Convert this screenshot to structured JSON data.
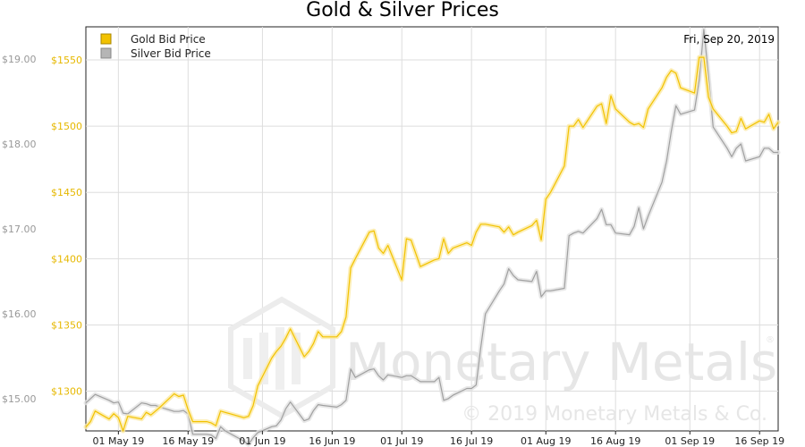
{
  "chart_data": {
    "type": "line",
    "title": "Gold & Silver Prices",
    "date_label": "Fri, Sep 20, 2019",
    "legend": {
      "position": "top-left"
    },
    "grid": true,
    "x_range": [
      "2019-04-24",
      "2019-09-20"
    ],
    "x_ticks": [
      "01 May 19",
      "16 May 19",
      "01 Jun 19",
      "16 Jun 19",
      "01 Jul 19",
      "16 Jul 19",
      "01 Aug 19",
      "16 Aug 19",
      "01 Sep 19",
      "16 Sep 19"
    ],
    "x_tick_dates": [
      "2019-05-01",
      "2019-05-16",
      "2019-06-01",
      "2019-06-16",
      "2019-07-01",
      "2019-07-16",
      "2019-08-01",
      "2019-08-16",
      "2019-09-01",
      "2019-09-16"
    ],
    "y_left": {
      "ticks": [
        "$1300",
        "$1350",
        "$1400",
        "$1450",
        "$1500",
        "$1550"
      ],
      "tick_values": [
        1300,
        1350,
        1400,
        1450,
        1500,
        1550
      ],
      "range": [
        1270,
        1575
      ]
    },
    "y_right": {
      "ticks": [
        "$15.00",
        "$16.00",
        "$17.00",
        "$18.00",
        "$19.00"
      ],
      "tick_values": [
        15,
        16,
        17,
        18,
        19
      ],
      "range": [
        14.62,
        19.38
      ]
    },
    "series": [
      {
        "name": "Gold Bid Price",
        "axis": "left",
        "color": "#f2c200",
        "points": [
          [
            "2019-04-24",
            1273
          ],
          [
            "2019-04-25",
            1277
          ],
          [
            "2019-04-26",
            1285
          ],
          [
            "2019-04-29",
            1279
          ],
          [
            "2019-04-30",
            1283
          ],
          [
            "2019-05-01",
            1280
          ],
          [
            "2019-05-02",
            1270
          ],
          [
            "2019-05-03",
            1281
          ],
          [
            "2019-05-06",
            1279
          ],
          [
            "2019-05-07",
            1284
          ],
          [
            "2019-05-08",
            1282
          ],
          [
            "2019-05-09",
            1285
          ],
          [
            "2019-05-10",
            1288
          ],
          [
            "2019-05-13",
            1298
          ],
          [
            "2019-05-14",
            1296
          ],
          [
            "2019-05-15",
            1297
          ],
          [
            "2019-05-16",
            1286
          ],
          [
            "2019-05-17",
            1277
          ],
          [
            "2019-05-20",
            1277
          ],
          [
            "2019-05-21",
            1276
          ],
          [
            "2019-05-22",
            1274
          ],
          [
            "2019-05-23",
            1285
          ],
          [
            "2019-05-24",
            1284
          ],
          [
            "2019-05-28",
            1280
          ],
          [
            "2019-05-29",
            1281
          ],
          [
            "2019-05-30",
            1289
          ],
          [
            "2019-05-31",
            1304
          ],
          [
            "2019-06-03",
            1325
          ],
          [
            "2019-06-04",
            1330
          ],
          [
            "2019-06-05",
            1334
          ],
          [
            "2019-06-06",
            1340
          ],
          [
            "2019-06-07",
            1347
          ],
          [
            "2019-06-10",
            1326
          ],
          [
            "2019-06-11",
            1330
          ],
          [
            "2019-06-12",
            1336
          ],
          [
            "2019-06-13",
            1345
          ],
          [
            "2019-06-14",
            1341
          ],
          [
            "2019-06-17",
            1341
          ],
          [
            "2019-06-18",
            1345
          ],
          [
            "2019-06-19",
            1356
          ],
          [
            "2019-06-20",
            1393
          ],
          [
            "2019-06-21",
            1400
          ],
          [
            "2019-06-24",
            1420
          ],
          [
            "2019-06-25",
            1421
          ],
          [
            "2019-06-26",
            1408
          ],
          [
            "2019-06-27",
            1404
          ],
          [
            "2019-06-28",
            1410
          ],
          [
            "2019-07-01",
            1384
          ],
          [
            "2019-07-02",
            1415
          ],
          [
            "2019-07-03",
            1414
          ],
          [
            "2019-07-05",
            1394
          ],
          [
            "2019-07-08",
            1399
          ],
          [
            "2019-07-09",
            1400
          ],
          [
            "2019-07-10",
            1415
          ],
          [
            "2019-07-11",
            1404
          ],
          [
            "2019-07-12",
            1408
          ],
          [
            "2019-07-15",
            1412
          ],
          [
            "2019-07-16",
            1410
          ],
          [
            "2019-07-17",
            1420
          ],
          [
            "2019-07-18",
            1426
          ],
          [
            "2019-07-19",
            1426
          ],
          [
            "2019-07-22",
            1424
          ],
          [
            "2019-07-23",
            1420
          ],
          [
            "2019-07-24",
            1424
          ],
          [
            "2019-07-25",
            1418
          ],
          [
            "2019-07-26",
            1420
          ],
          [
            "2019-07-29",
            1425
          ],
          [
            "2019-07-30",
            1429
          ],
          [
            "2019-07-31",
            1414
          ],
          [
            "2019-08-01",
            1445
          ],
          [
            "2019-08-02",
            1450
          ],
          [
            "2019-08-05",
            1470
          ],
          [
            "2019-08-06",
            1500
          ],
          [
            "2019-08-07",
            1500
          ],
          [
            "2019-08-08",
            1505
          ],
          [
            "2019-08-09",
            1499
          ],
          [
            "2019-08-12",
            1515
          ],
          [
            "2019-08-13",
            1517
          ],
          [
            "2019-08-14",
            1502
          ],
          [
            "2019-08-15",
            1523
          ],
          [
            "2019-08-16",
            1513
          ],
          [
            "2019-08-19",
            1503
          ],
          [
            "2019-08-20",
            1501
          ],
          [
            "2019-08-21",
            1502
          ],
          [
            "2019-08-22",
            1499
          ],
          [
            "2019-08-23",
            1513
          ],
          [
            "2019-08-26",
            1529
          ],
          [
            "2019-08-27",
            1537
          ],
          [
            "2019-08-28",
            1542
          ],
          [
            "2019-08-29",
            1540
          ],
          [
            "2019-08-30",
            1529
          ],
          [
            "2019-09-02",
            1525
          ],
          [
            "2019-09-03",
            1552
          ],
          [
            "2019-09-04",
            1552
          ],
          [
            "2019-09-05",
            1522
          ],
          [
            "2019-09-06",
            1513
          ],
          [
            "2019-09-09",
            1500
          ],
          [
            "2019-09-10",
            1495
          ],
          [
            "2019-09-11",
            1496
          ],
          [
            "2019-09-12",
            1506
          ],
          [
            "2019-09-13",
            1498
          ],
          [
            "2019-09-16",
            1504
          ],
          [
            "2019-09-17",
            1503
          ],
          [
            "2019-09-18",
            1509
          ],
          [
            "2019-09-19",
            1498
          ],
          [
            "2019-09-20",
            1503
          ]
        ]
      },
      {
        "name": "Silver Bid Price",
        "axis": "right",
        "color": "#a0a0a0",
        "points": [
          [
            "2019-04-24",
            14.95
          ],
          [
            "2019-04-25",
            15.0
          ],
          [
            "2019-04-26",
            15.05
          ],
          [
            "2019-04-29",
            14.98
          ],
          [
            "2019-04-30",
            14.95
          ],
          [
            "2019-05-01",
            14.96
          ],
          [
            "2019-05-02",
            14.83
          ],
          [
            "2019-05-03",
            14.82
          ],
          [
            "2019-05-06",
            14.95
          ],
          [
            "2019-05-07",
            14.94
          ],
          [
            "2019-05-08",
            14.92
          ],
          [
            "2019-05-09",
            14.92
          ],
          [
            "2019-05-10",
            14.9
          ],
          [
            "2019-05-13",
            14.85
          ],
          [
            "2019-05-14",
            14.85
          ],
          [
            "2019-05-15",
            14.86
          ],
          [
            "2019-05-16",
            14.82
          ],
          [
            "2019-05-17",
            14.58
          ],
          [
            "2019-05-20",
            14.58
          ],
          [
            "2019-05-21",
            14.57
          ],
          [
            "2019-05-22",
            14.53
          ],
          [
            "2019-05-23",
            14.67
          ],
          [
            "2019-05-24",
            14.62
          ],
          [
            "2019-05-28",
            14.5
          ],
          [
            "2019-05-29",
            14.46
          ],
          [
            "2019-05-30",
            14.54
          ],
          [
            "2019-05-31",
            14.6
          ],
          [
            "2019-06-03",
            14.67
          ],
          [
            "2019-06-04",
            14.68
          ],
          [
            "2019-06-05",
            14.75
          ],
          [
            "2019-06-06",
            14.88
          ],
          [
            "2019-06-07",
            14.96
          ],
          [
            "2019-06-10",
            14.74
          ],
          [
            "2019-06-11",
            14.76
          ],
          [
            "2019-06-12",
            14.86
          ],
          [
            "2019-06-13",
            14.93
          ],
          [
            "2019-06-14",
            14.92
          ],
          [
            "2019-06-17",
            14.9
          ],
          [
            "2019-06-18",
            14.93
          ],
          [
            "2019-06-19",
            14.98
          ],
          [
            "2019-06-20",
            15.35
          ],
          [
            "2019-06-21",
            15.25
          ],
          [
            "2019-06-24",
            15.34
          ],
          [
            "2019-06-25",
            15.35
          ],
          [
            "2019-06-26",
            15.27
          ],
          [
            "2019-06-27",
            15.22
          ],
          [
            "2019-06-28",
            15.28
          ],
          [
            "2019-07-01",
            15.25
          ],
          [
            "2019-07-02",
            15.27
          ],
          [
            "2019-07-03",
            15.27
          ],
          [
            "2019-07-05",
            15.2
          ],
          [
            "2019-07-08",
            15.2
          ],
          [
            "2019-07-09",
            15.25
          ],
          [
            "2019-07-10",
            14.98
          ],
          [
            "2019-07-11",
            15.0
          ],
          [
            "2019-07-12",
            15.04
          ],
          [
            "2019-07-15",
            15.12
          ],
          [
            "2019-07-16",
            15.12
          ],
          [
            "2019-07-17",
            15.16
          ],
          [
            "2019-07-18",
            15.6
          ],
          [
            "2019-07-19",
            16.0
          ],
          [
            "2019-07-22",
            16.27
          ],
          [
            "2019-07-23",
            16.35
          ],
          [
            "2019-07-24",
            16.53
          ],
          [
            "2019-07-25",
            16.45
          ],
          [
            "2019-07-26",
            16.4
          ],
          [
            "2019-07-29",
            16.38
          ],
          [
            "2019-07-30",
            16.5
          ],
          [
            "2019-07-31",
            16.2
          ],
          [
            "2019-08-01",
            16.27
          ],
          [
            "2019-08-02",
            16.27
          ],
          [
            "2019-08-05",
            16.3
          ],
          [
            "2019-08-06",
            16.92
          ],
          [
            "2019-08-07",
            16.95
          ],
          [
            "2019-08-08",
            16.97
          ],
          [
            "2019-08-09",
            16.95
          ],
          [
            "2019-08-12",
            17.12
          ],
          [
            "2019-08-13",
            17.23
          ],
          [
            "2019-08-14",
            17.05
          ],
          [
            "2019-08-15",
            17.05
          ],
          [
            "2019-08-16",
            16.95
          ],
          [
            "2019-08-19",
            16.93
          ],
          [
            "2019-08-20",
            17.03
          ],
          [
            "2019-08-21",
            17.25
          ],
          [
            "2019-08-22",
            17.0
          ],
          [
            "2019-08-23",
            17.15
          ],
          [
            "2019-08-26",
            17.55
          ],
          [
            "2019-08-27",
            17.8
          ],
          [
            "2019-08-28",
            18.15
          ],
          [
            "2019-08-29",
            18.45
          ],
          [
            "2019-08-30",
            18.35
          ],
          [
            "2019-09-02",
            18.4
          ],
          [
            "2019-09-03",
            18.75
          ],
          [
            "2019-09-04",
            19.35
          ],
          [
            "2019-09-05",
            18.8
          ],
          [
            "2019-09-06",
            18.2
          ],
          [
            "2019-09-09",
            17.95
          ],
          [
            "2019-09-10",
            17.85
          ],
          [
            "2019-09-11",
            17.95
          ],
          [
            "2019-09-12",
            18.0
          ],
          [
            "2019-09-13",
            17.8
          ],
          [
            "2019-09-16",
            17.85
          ],
          [
            "2019-09-17",
            17.95
          ],
          [
            "2019-09-18",
            17.95
          ],
          [
            "2019-09-19",
            17.9
          ],
          [
            "2019-09-20",
            17.9
          ]
        ]
      }
    ]
  },
  "watermark": {
    "brand": "Monetary Metals",
    "registered": "®",
    "copyright": "© 2019 Monetary Metals & Co."
  }
}
